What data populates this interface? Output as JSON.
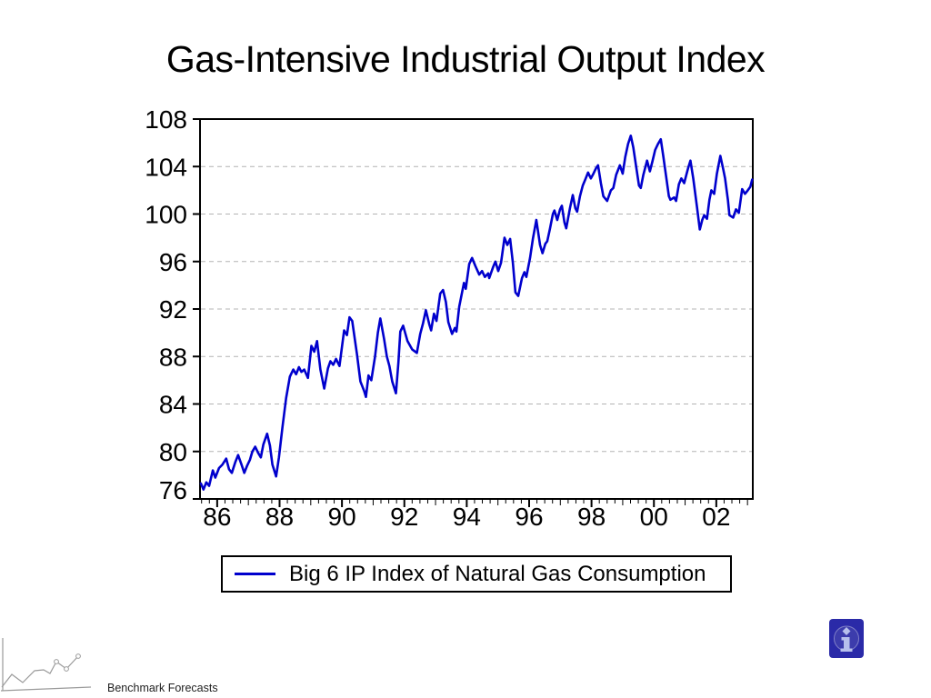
{
  "slide": {
    "title": "Gas-Intensive Industrial Output Index",
    "footer_brand": "Benchmark Forecasts",
    "background_color": "#FFFFFF"
  },
  "legend": {
    "label": "Big 6 IP Index of Natural Gas Consumption",
    "line_color": "#0000CD",
    "border_color": "#000000"
  },
  "info_button": {
    "square_color": "#2A2AA8",
    "circle_color": "#3C3CAC",
    "ring_color": "#8080C8",
    "glyph_color": "#B7C0EC"
  },
  "logo": {
    "stroke_color": "#9A9A9A"
  },
  "chart_data": {
    "type": "line",
    "title": "",
    "xlabel": "",
    "ylabel": "",
    "legend_position": "bottom-center",
    "grid_style": "dashed-horizontal",
    "grid_color": "#B4B4B4",
    "frame_color": "#000000",
    "xlim": [
      85.45,
      103.17
    ],
    "ylim": [
      76,
      108
    ],
    "y_ticks": [
      76,
      80,
      84,
      88,
      92,
      96,
      100,
      104,
      108
    ],
    "y_gridlines": [
      80,
      84,
      88,
      92,
      96,
      100,
      104
    ],
    "x_major_ticks": [
      {
        "year": 86,
        "label": "86"
      },
      {
        "year": 88,
        "label": "88"
      },
      {
        "year": 90,
        "label": "90"
      },
      {
        "year": 92,
        "label": "92"
      },
      {
        "year": 94,
        "label": "94"
      },
      {
        "year": 96,
        "label": "96"
      },
      {
        "year": 98,
        "label": "98"
      },
      {
        "year": 100,
        "label": "00"
      },
      {
        "year": 102,
        "label": "02"
      }
    ],
    "x_minor_step_years": 0.25,
    "series": [
      {
        "name": "Big 6 IP Index of Natural Gas Consumption",
        "color": "#0000CD",
        "points": [
          [
            85.48,
            77.3
          ],
          [
            85.56,
            76.8
          ],
          [
            85.65,
            77.4
          ],
          [
            85.74,
            77.1
          ],
          [
            85.86,
            78.4
          ],
          [
            85.94,
            77.8
          ],
          [
            86.06,
            78.6
          ],
          [
            86.17,
            78.9
          ],
          [
            86.29,
            79.4
          ],
          [
            86.38,
            78.5
          ],
          [
            86.47,
            78.2
          ],
          [
            86.58,
            79.1
          ],
          [
            86.67,
            79.7
          ],
          [
            86.78,
            78.9
          ],
          [
            86.87,
            78.2
          ],
          [
            86.96,
            78.8
          ],
          [
            87.05,
            79.3
          ],
          [
            87.13,
            80.0
          ],
          [
            87.22,
            80.4
          ],
          [
            87.31,
            79.9
          ],
          [
            87.4,
            79.5
          ],
          [
            87.48,
            80.6
          ],
          [
            87.6,
            81.5
          ],
          [
            87.69,
            80.5
          ],
          [
            87.77,
            78.9
          ],
          [
            87.89,
            77.9
          ],
          [
            87.98,
            79.5
          ],
          [
            88.09,
            82.0
          ],
          [
            88.21,
            84.5
          ],
          [
            88.33,
            86.3
          ],
          [
            88.44,
            86.9
          ],
          [
            88.53,
            86.5
          ],
          [
            88.62,
            87.1
          ],
          [
            88.7,
            86.7
          ],
          [
            88.79,
            86.9
          ],
          [
            88.91,
            86.2
          ],
          [
            89.02,
            88.9
          ],
          [
            89.11,
            88.4
          ],
          [
            89.2,
            89.3
          ],
          [
            89.31,
            86.9
          ],
          [
            89.43,
            85.3
          ],
          [
            89.55,
            87.0
          ],
          [
            89.63,
            87.6
          ],
          [
            89.72,
            87.3
          ],
          [
            89.81,
            87.8
          ],
          [
            89.92,
            87.2
          ],
          [
            90.07,
            90.2
          ],
          [
            90.16,
            89.8
          ],
          [
            90.24,
            91.3
          ],
          [
            90.33,
            91.0
          ],
          [
            90.48,
            88.2
          ],
          [
            90.59,
            85.9
          ],
          [
            90.71,
            85.1
          ],
          [
            90.77,
            84.6
          ],
          [
            90.85,
            86.4
          ],
          [
            90.94,
            86.0
          ],
          [
            91.06,
            88.0
          ],
          [
            91.15,
            90.0
          ],
          [
            91.23,
            91.2
          ],
          [
            91.35,
            89.5
          ],
          [
            91.44,
            88.0
          ],
          [
            91.52,
            87.2
          ],
          [
            91.61,
            85.9
          ],
          [
            91.73,
            84.9
          ],
          [
            91.81,
            87.5
          ],
          [
            91.87,
            90.1
          ],
          [
            91.96,
            90.6
          ],
          [
            92.1,
            89.3
          ],
          [
            92.25,
            88.6
          ],
          [
            92.4,
            88.3
          ],
          [
            92.51,
            89.9
          ],
          [
            92.6,
            90.8
          ],
          [
            92.69,
            91.9
          ],
          [
            92.8,
            90.7
          ],
          [
            92.86,
            90.2
          ],
          [
            92.95,
            91.6
          ],
          [
            93.03,
            91.0
          ],
          [
            93.15,
            93.3
          ],
          [
            93.24,
            93.6
          ],
          [
            93.33,
            92.6
          ],
          [
            93.41,
            90.9
          ],
          [
            93.53,
            89.9
          ],
          [
            93.62,
            90.4
          ],
          [
            93.67,
            90.1
          ],
          [
            93.76,
            92.2
          ],
          [
            93.82,
            93.0
          ],
          [
            93.91,
            94.2
          ],
          [
            93.97,
            93.7
          ],
          [
            94.08,
            95.8
          ],
          [
            94.17,
            96.3
          ],
          [
            94.28,
            95.6
          ],
          [
            94.4,
            94.9
          ],
          [
            94.49,
            95.2
          ],
          [
            94.58,
            94.7
          ],
          [
            94.69,
            95.0
          ],
          [
            94.72,
            94.6
          ],
          [
            94.84,
            95.5
          ],
          [
            94.92,
            96.0
          ],
          [
            95.01,
            95.2
          ],
          [
            95.1,
            95.9
          ],
          [
            95.21,
            98.0
          ],
          [
            95.3,
            97.4
          ],
          [
            95.39,
            97.9
          ],
          [
            95.48,
            95.9
          ],
          [
            95.56,
            93.4
          ],
          [
            95.65,
            93.1
          ],
          [
            95.77,
            94.6
          ],
          [
            95.85,
            95.1
          ],
          [
            95.91,
            94.7
          ],
          [
            96.03,
            96.3
          ],
          [
            96.12,
            97.9
          ],
          [
            96.23,
            99.5
          ],
          [
            96.35,
            97.4
          ],
          [
            96.43,
            96.7
          ],
          [
            96.52,
            97.5
          ],
          [
            96.58,
            97.7
          ],
          [
            96.67,
            98.8
          ],
          [
            96.76,
            100.0
          ],
          [
            96.81,
            100.3
          ],
          [
            96.9,
            99.5
          ],
          [
            96.99,
            100.4
          ],
          [
            97.05,
            100.7
          ],
          [
            97.13,
            99.3
          ],
          [
            97.19,
            98.8
          ],
          [
            97.31,
            100.5
          ],
          [
            97.4,
            101.6
          ],
          [
            97.48,
            100.5
          ],
          [
            97.54,
            100.2
          ],
          [
            97.63,
            101.5
          ],
          [
            97.72,
            102.4
          ],
          [
            97.8,
            102.9
          ],
          [
            97.89,
            103.5
          ],
          [
            97.98,
            103.0
          ],
          [
            98.06,
            103.4
          ],
          [
            98.15,
            103.9
          ],
          [
            98.21,
            104.1
          ],
          [
            98.3,
            102.6
          ],
          [
            98.38,
            101.5
          ],
          [
            98.5,
            101.1
          ],
          [
            98.62,
            102.0
          ],
          [
            98.7,
            102.2
          ],
          [
            98.79,
            103.3
          ],
          [
            98.91,
            104.1
          ],
          [
            99.0,
            103.4
          ],
          [
            99.08,
            104.8
          ],
          [
            99.17,
            105.9
          ],
          [
            99.26,
            106.6
          ],
          [
            99.34,
            105.6
          ],
          [
            99.43,
            104.0
          ],
          [
            99.52,
            102.4
          ],
          [
            99.58,
            102.2
          ],
          [
            99.66,
            103.3
          ],
          [
            99.78,
            104.5
          ],
          [
            99.87,
            103.6
          ],
          [
            99.95,
            104.4
          ],
          [
            100.04,
            105.4
          ],
          [
            100.13,
            105.9
          ],
          [
            100.22,
            106.3
          ],
          [
            100.3,
            104.9
          ],
          [
            100.39,
            103.2
          ],
          [
            100.48,
            101.5
          ],
          [
            100.53,
            101.2
          ],
          [
            100.65,
            101.4
          ],
          [
            100.71,
            101.1
          ],
          [
            100.8,
            102.5
          ],
          [
            100.88,
            103.0
          ],
          [
            100.97,
            102.6
          ],
          [
            101.09,
            103.8
          ],
          [
            101.17,
            104.5
          ],
          [
            101.26,
            103.0
          ],
          [
            101.38,
            100.6
          ],
          [
            101.47,
            98.7
          ],
          [
            101.55,
            99.5
          ],
          [
            101.61,
            99.9
          ],
          [
            101.7,
            99.6
          ],
          [
            101.78,
            101.2
          ],
          [
            101.84,
            102.0
          ],
          [
            101.93,
            101.7
          ],
          [
            102.02,
            103.4
          ],
          [
            102.13,
            104.9
          ],
          [
            102.22,
            103.8
          ],
          [
            102.28,
            103.0
          ],
          [
            102.37,
            101.2
          ],
          [
            102.42,
            99.9
          ],
          [
            102.54,
            99.7
          ],
          [
            102.63,
            100.4
          ],
          [
            102.72,
            100.1
          ],
          [
            102.83,
            102.1
          ],
          [
            102.92,
            101.7
          ],
          [
            103.01,
            102.0
          ],
          [
            103.09,
            102.3
          ],
          [
            103.15,
            102.9
          ]
        ]
      }
    ]
  }
}
